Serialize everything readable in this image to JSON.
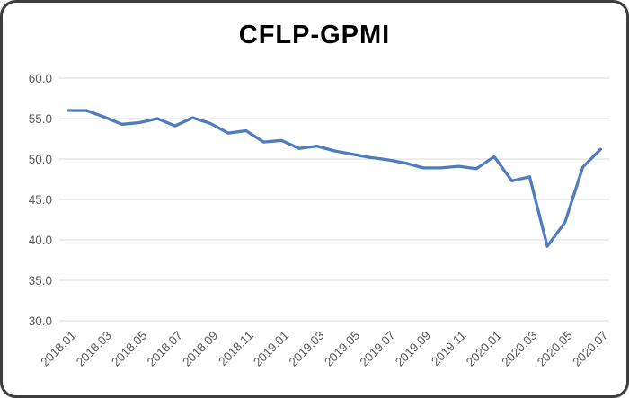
{
  "window": {
    "background_color": "#FFFFFF",
    "frame_border_color": "#3D3D3D"
  },
  "chart_data": {
    "type": "line",
    "title": "CFLP-GPMI",
    "xlabel": "",
    "ylabel": "",
    "legend": "none",
    "grid": "horizontal",
    "ylim": [
      30.0,
      60.0
    ],
    "y_ticks": [
      "60.0",
      "55.0",
      "50.0",
      "45.0",
      "40.0",
      "35.0",
      "30.0"
    ],
    "y_tick_values": [
      60,
      55,
      50,
      45,
      40,
      35,
      30
    ],
    "x": [
      "2018.01",
      "2018.02",
      "2018.03",
      "2018.04",
      "2018.05",
      "2018.06",
      "2018.07",
      "2018.08",
      "2018.09",
      "2018.10",
      "2018.11",
      "2018.12",
      "2019.01",
      "2019.02",
      "2019.03",
      "2019.04",
      "2019.05",
      "2019.06",
      "2019.07",
      "2019.08",
      "2019.09",
      "2019.10",
      "2019.11",
      "2019.12",
      "2020.01",
      "2020.02",
      "2020.03",
      "2020.04",
      "2020.05",
      "2020.06",
      "2020.07"
    ],
    "values": [
      56.0,
      56.0,
      55.2,
      54.3,
      54.5,
      55.0,
      54.1,
      55.1,
      54.4,
      53.2,
      53.5,
      52.1,
      52.3,
      51.3,
      51.6,
      51.0,
      50.6,
      50.2,
      49.9,
      49.5,
      48.9,
      48.9,
      49.1,
      48.8,
      50.3,
      47.3,
      47.8,
      39.2,
      42.2,
      49.0,
      51.2
    ],
    "x_tick_labels_shown": [
      "2018.01",
      "2018.03",
      "2018.05",
      "2018.07",
      "2018.09",
      "2018.11",
      "2019.01",
      "2019.03",
      "2019.05",
      "2019.07",
      "2019.09",
      "2019.11",
      "2020.01",
      "2020.03",
      "2020.05",
      "2020.07"
    ],
    "x_tick_rotation_deg": -45,
    "line_color": "#4E7CBF",
    "gridline_color": "#D9D9D9",
    "tick_label_color": "#595959",
    "title_color": "#000000"
  }
}
